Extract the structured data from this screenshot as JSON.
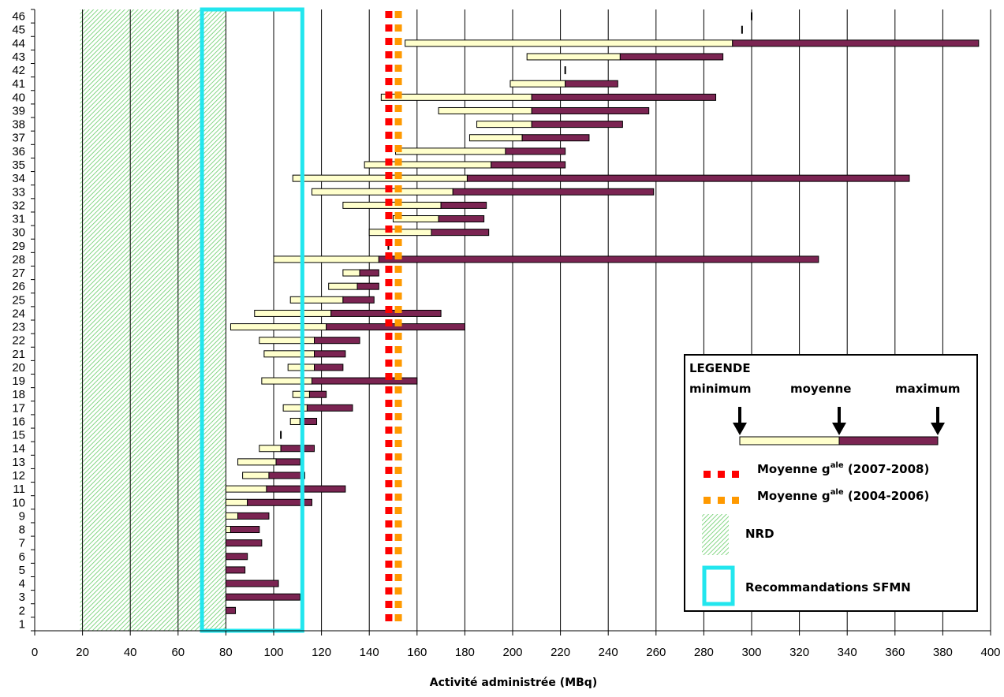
{
  "chart_data": {
    "type": "bar",
    "title": "",
    "xlabel": "Activité administrée (MBq)",
    "ylabel": "",
    "xlim": [
      0,
      400
    ],
    "xticks": [
      0,
      20,
      40,
      60,
      80,
      100,
      120,
      140,
      160,
      180,
      200,
      220,
      240,
      260,
      280,
      300,
      320,
      340,
      360,
      380,
      400
    ],
    "categories": [
      "1",
      "2",
      "3",
      "4",
      "5",
      "6",
      "7",
      "8",
      "9",
      "10",
      "11",
      "12",
      "13",
      "14",
      "15",
      "16",
      "17",
      "18",
      "19",
      "20",
      "21",
      "22",
      "23",
      "24",
      "25",
      "26",
      "27",
      "28",
      "29",
      "30",
      "31",
      "32",
      "33",
      "34",
      "35",
      "36",
      "37",
      "38",
      "39",
      "40",
      "41",
      "42",
      "43",
      "44",
      "45",
      "46"
    ],
    "rows": [
      {
        "label": "1",
        "min": null,
        "mean": null,
        "max": null
      },
      {
        "label": "2",
        "min": 80,
        "mean": 80,
        "max": 84
      },
      {
        "label": "3",
        "min": 80,
        "mean": 80,
        "max": 111
      },
      {
        "label": "4",
        "min": 80,
        "mean": 80,
        "max": 102
      },
      {
        "label": "5",
        "min": 80,
        "mean": 80,
        "max": 88
      },
      {
        "label": "6",
        "min": 80,
        "mean": 80,
        "max": 89
      },
      {
        "label": "7",
        "min": 80,
        "mean": 80,
        "max": 95
      },
      {
        "label": "8",
        "min": 80,
        "mean": 82,
        "max": 94
      },
      {
        "label": "9",
        "min": 80,
        "mean": 85,
        "max": 98
      },
      {
        "label": "10",
        "min": 80,
        "mean": 89,
        "max": 116
      },
      {
        "label": "11",
        "min": 80,
        "mean": 97,
        "max": 130
      },
      {
        "label": "12",
        "min": 87,
        "mean": 98,
        "max": 113
      },
      {
        "label": "13",
        "min": 85,
        "mean": 101,
        "max": 111
      },
      {
        "label": "14",
        "min": 94,
        "mean": 103,
        "max": 117
      },
      {
        "label": "15",
        "min": 103,
        "mean": 103,
        "max": 103
      },
      {
        "label": "16",
        "min": 107,
        "mean": 111,
        "max": 118
      },
      {
        "label": "17",
        "min": 104,
        "mean": 114,
        "max": 133
      },
      {
        "label": "18",
        "min": 108,
        "mean": 115,
        "max": 122
      },
      {
        "label": "19",
        "min": 95,
        "mean": 116,
        "max": 160
      },
      {
        "label": "20",
        "min": 106,
        "mean": 117,
        "max": 129
      },
      {
        "label": "21",
        "min": 96,
        "mean": 117,
        "max": 130
      },
      {
        "label": "22",
        "min": 94,
        "mean": 117,
        "max": 136
      },
      {
        "label": "23",
        "min": 82,
        "mean": 122,
        "max": 180
      },
      {
        "label": "24",
        "min": 92,
        "mean": 124,
        "max": 170
      },
      {
        "label": "25",
        "min": 107,
        "mean": 129,
        "max": 142
      },
      {
        "label": "26",
        "min": 123,
        "mean": 135,
        "max": 144
      },
      {
        "label": "27",
        "min": 129,
        "mean": 136,
        "max": 144
      },
      {
        "label": "28",
        "min": 100,
        "mean": 144,
        "max": 328
      },
      {
        "label": "29",
        "min": 148,
        "mean": 148,
        "max": 148
      },
      {
        "label": "30",
        "min": 140,
        "mean": 166,
        "max": 190
      },
      {
        "label": "31",
        "min": 150,
        "mean": 169,
        "max": 188
      },
      {
        "label": "32",
        "min": 129,
        "mean": 170,
        "max": 189
      },
      {
        "label": "33",
        "min": 116,
        "mean": 175,
        "max": 259
      },
      {
        "label": "34",
        "min": 108,
        "mean": 181,
        "max": 366
      },
      {
        "label": "35",
        "min": 138,
        "mean": 191,
        "max": 222
      },
      {
        "label": "36",
        "min": 151,
        "mean": 197,
        "max": 222
      },
      {
        "label": "37",
        "min": 182,
        "mean": 204,
        "max": 232
      },
      {
        "label": "38",
        "min": 185,
        "mean": 208,
        "max": 246
      },
      {
        "label": "39",
        "min": 169,
        "mean": 208,
        "max": 257
      },
      {
        "label": "40",
        "min": 145,
        "mean": 208,
        "max": 285
      },
      {
        "label": "41",
        "min": 199,
        "mean": 222,
        "max": 244
      },
      {
        "label": "42",
        "min": 222,
        "mean": 222,
        "max": 222
      },
      {
        "label": "43",
        "min": 206,
        "mean": 245,
        "max": 288
      },
      {
        "label": "44",
        "min": 155,
        "mean": 292,
        "max": 395
      },
      {
        "label": "45",
        "min": 296,
        "mean": 296,
        "max": 296
      },
      {
        "label": "46",
        "min": 300,
        "mean": 300,
        "max": 300
      }
    ],
    "reference_lines": [
      {
        "name": "Moyenne g(ale) (2007-2008)",
        "x": 148,
        "color": "#ff0000"
      },
      {
        "name": "Moyenne g(ale) (2004-2006)",
        "x": 152,
        "color": "#ff9900"
      }
    ],
    "regions": [
      {
        "name": "NRD",
        "x_from": 19,
        "x_to": 80,
        "color": "#6fd36f"
      },
      {
        "name": "Recommandations SFMN",
        "x_from": 70,
        "x_to": 112,
        "color": "#22e6ee"
      }
    ],
    "grid": true,
    "legend_position": "bottom-right"
  },
  "colors": {
    "min_to_mean": "#ffffcc",
    "mean_to_max": "#7b2452",
    "ref_2007_2008": "#ff0000",
    "ref_2004_2006": "#ff9900",
    "nrd": "#6fd36f",
    "sfmn": "#22e6ee"
  },
  "legend": {
    "title": "LEGENDE",
    "minimum": "minimum",
    "moyenne": "moyenne",
    "maximum": "maximum",
    "ref1_main": "Moyenne g",
    "ref1_sup": "ale",
    "ref1_period": " (2007-2008)",
    "ref2_main": "Moyenne g",
    "ref2_sup": "ale",
    "ref2_period": " (2004-2006)",
    "nrd": "NRD",
    "sfmn": "Recommandations SFMN"
  }
}
